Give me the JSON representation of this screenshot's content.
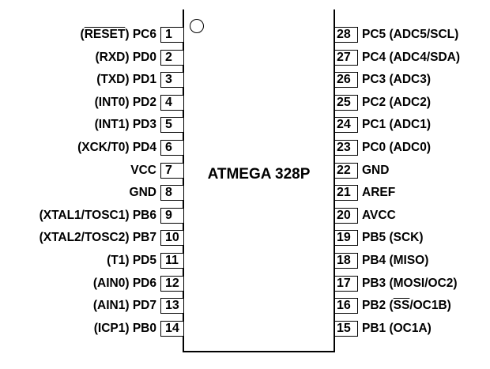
{
  "chip": {
    "name": "ATMEGA 328P"
  },
  "left_pins": [
    {
      "num": "1",
      "pre": "(",
      "over": "RESET",
      "post": ") PC6"
    },
    {
      "num": "2",
      "pre": "(RXD) PD0",
      "over": "",
      "post": ""
    },
    {
      "num": "3",
      "pre": "(TXD) PD1",
      "over": "",
      "post": ""
    },
    {
      "num": "4",
      "pre": "(INT0) PD2",
      "over": "",
      "post": ""
    },
    {
      "num": "5",
      "pre": "(INT1) PD3",
      "over": "",
      "post": ""
    },
    {
      "num": "6",
      "pre": "(XCK/T0) PD4",
      "over": "",
      "post": ""
    },
    {
      "num": "7",
      "pre": "VCC",
      "over": "",
      "post": ""
    },
    {
      "num": "8",
      "pre": "GND",
      "over": "",
      "post": ""
    },
    {
      "num": "9",
      "pre": "(XTAL1/TOSC1) PB6",
      "over": "",
      "post": ""
    },
    {
      "num": "10",
      "pre": "(XTAL2/TOSC2) PB7",
      "over": "",
      "post": ""
    },
    {
      "num": "11",
      "pre": "(T1) PD5",
      "over": "",
      "post": ""
    },
    {
      "num": "12",
      "pre": "(AIN0) PD6",
      "over": "",
      "post": ""
    },
    {
      "num": "13",
      "pre": "(AIN1) PD7",
      "over": "",
      "post": ""
    },
    {
      "num": "14",
      "pre": "(ICP1) PB0",
      "over": "",
      "post": ""
    }
  ],
  "right_pins": [
    {
      "num": "28",
      "pre": "PC5 (ADC5/SCL)",
      "over": "",
      "post": ""
    },
    {
      "num": "27",
      "pre": "PC4 (ADC4/SDA)",
      "over": "",
      "post": ""
    },
    {
      "num": "26",
      "pre": "PC3 (ADC3)",
      "over": "",
      "post": ""
    },
    {
      "num": "25",
      "pre": "PC2 (ADC2)",
      "over": "",
      "post": ""
    },
    {
      "num": "24",
      "pre": "PC1 (ADC1)",
      "over": "",
      "post": ""
    },
    {
      "num": "23",
      "pre": "PC0 (ADC0)",
      "over": "",
      "post": ""
    },
    {
      "num": "22",
      "pre": "GND",
      "over": "",
      "post": ""
    },
    {
      "num": "21",
      "pre": "AREF",
      "over": "",
      "post": ""
    },
    {
      "num": "20",
      "pre": "AVCC",
      "over": "",
      "post": ""
    },
    {
      "num": "19",
      "pre": "PB5 (SCK)",
      "over": "",
      "post": ""
    },
    {
      "num": "18",
      "pre": "PB4 (MISO)",
      "over": "",
      "post": ""
    },
    {
      "num": "17",
      "pre": "PB3 (MOSI/OC2)",
      "over": "",
      "post": ""
    },
    {
      "num": "16",
      "pre": "PB2 (",
      "over": "SS",
      "post": "/OC1B)"
    },
    {
      "num": "15",
      "pre": "PB1 (OC1A)",
      "over": "",
      "post": ""
    }
  ]
}
